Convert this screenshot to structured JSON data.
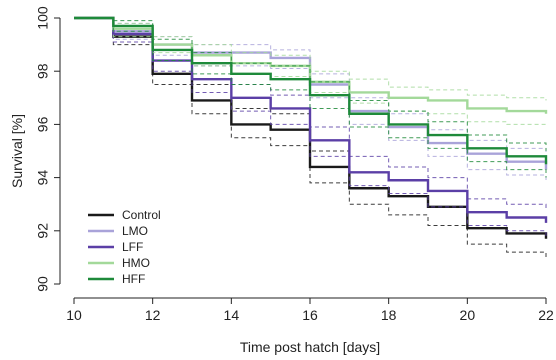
{
  "chart_data": {
    "type": "line",
    "step": true,
    "xlabel": "Time post hatch [days]",
    "ylabel": "Survival [%]",
    "xlim": [
      10,
      22
    ],
    "ylim": [
      90,
      100
    ],
    "xticks": [
      "10",
      "12",
      "14",
      "16",
      "18",
      "20",
      "22"
    ],
    "yticks": [
      "90",
      "92",
      "94",
      "96",
      "98",
      "100"
    ],
    "grid": false,
    "legend_position": "bottom-left",
    "confidence_bands": true,
    "series": [
      {
        "name": "Control",
        "color": "#1a1a1a",
        "x": [
          10,
          11,
          12,
          13,
          14,
          15,
          16,
          17,
          18,
          19,
          20,
          21,
          22
        ],
        "y": [
          100,
          99.3,
          97.9,
          96.9,
          96.0,
          95.8,
          94.4,
          93.6,
          93.3,
          92.9,
          92.1,
          91.9,
          91.7
        ],
        "ci_upper": [
          100,
          99.6,
          98.4,
          97.5,
          96.6,
          96.4,
          95.0,
          94.2,
          93.9,
          93.5,
          92.7,
          92.5,
          92.3
        ],
        "ci_lower": [
          100,
          99.0,
          97.5,
          96.4,
          95.5,
          95.2,
          93.8,
          93.0,
          92.6,
          92.2,
          91.5,
          91.2,
          91.0
        ]
      },
      {
        "name": "LMO",
        "color": "#a9a3d9",
        "x": [
          10,
          11,
          12,
          13,
          14,
          15,
          16,
          17,
          18,
          19,
          20,
          21,
          22
        ],
        "y": [
          100,
          99.5,
          99.0,
          98.7,
          98.7,
          98.5,
          97.5,
          96.5,
          95.9,
          95.3,
          94.9,
          94.6,
          94.3
        ],
        "ci_upper": [
          100,
          99.8,
          99.3,
          99.0,
          99.0,
          98.8,
          97.9,
          97.0,
          96.4,
          95.8,
          95.4,
          95.1,
          94.8
        ],
        "ci_lower": [
          100,
          99.2,
          98.6,
          98.3,
          98.2,
          98.1,
          97.0,
          96.0,
          95.4,
          94.8,
          94.3,
          94.1,
          93.8
        ]
      },
      {
        "name": "LFF",
        "color": "#5b3fa6",
        "x": [
          10,
          11,
          12,
          13,
          14,
          15,
          16,
          17,
          18,
          19,
          20,
          21,
          22
        ],
        "y": [
          100,
          99.4,
          98.4,
          97.7,
          97.0,
          96.6,
          95.4,
          94.2,
          93.9,
          93.5,
          92.7,
          92.5,
          92.3
        ],
        "ci_upper": [
          100,
          99.7,
          98.8,
          98.2,
          97.5,
          97.1,
          95.9,
          94.8,
          94.4,
          94.0,
          93.2,
          93.0,
          92.8
        ],
        "ci_lower": [
          100,
          99.1,
          98.0,
          97.2,
          96.5,
          96.0,
          94.8,
          93.7,
          93.4,
          92.9,
          92.2,
          92.0,
          91.8
        ]
      },
      {
        "name": "HMO",
        "color": "#a3d99a",
        "x": [
          10,
          11,
          12,
          13,
          14,
          15,
          16,
          17,
          18,
          19,
          20,
          21,
          22
        ],
        "y": [
          100,
          99.6,
          99.0,
          98.6,
          98.3,
          98.2,
          97.6,
          97.2,
          97.0,
          96.9,
          96.6,
          96.5,
          96.4
        ],
        "ci_upper": [
          100,
          99.8,
          99.3,
          99.0,
          98.7,
          98.6,
          98.0,
          97.7,
          97.4,
          97.3,
          97.1,
          97.0,
          96.9
        ],
        "ci_lower": [
          100,
          99.3,
          98.7,
          98.2,
          97.9,
          97.8,
          97.2,
          96.8,
          96.5,
          96.4,
          96.1,
          96.0,
          95.9
        ]
      },
      {
        "name": "HFF",
        "color": "#1e8a3a",
        "x": [
          10,
          11,
          12,
          13,
          14,
          15,
          16,
          17,
          18,
          19,
          20,
          21,
          22
        ],
        "y": [
          100,
          99.7,
          98.8,
          98.3,
          97.9,
          97.7,
          97.1,
          96.4,
          96.0,
          95.6,
          95.1,
          94.8,
          94.5
        ],
        "ci_upper": [
          100,
          99.9,
          99.2,
          98.7,
          98.3,
          98.2,
          97.6,
          96.9,
          96.5,
          96.1,
          95.6,
          95.3,
          95.0
        ],
        "ci_lower": [
          100,
          99.5,
          98.4,
          97.9,
          97.5,
          97.3,
          96.6,
          95.9,
          95.5,
          95.1,
          94.6,
          94.3,
          94.0
        ]
      }
    ]
  }
}
